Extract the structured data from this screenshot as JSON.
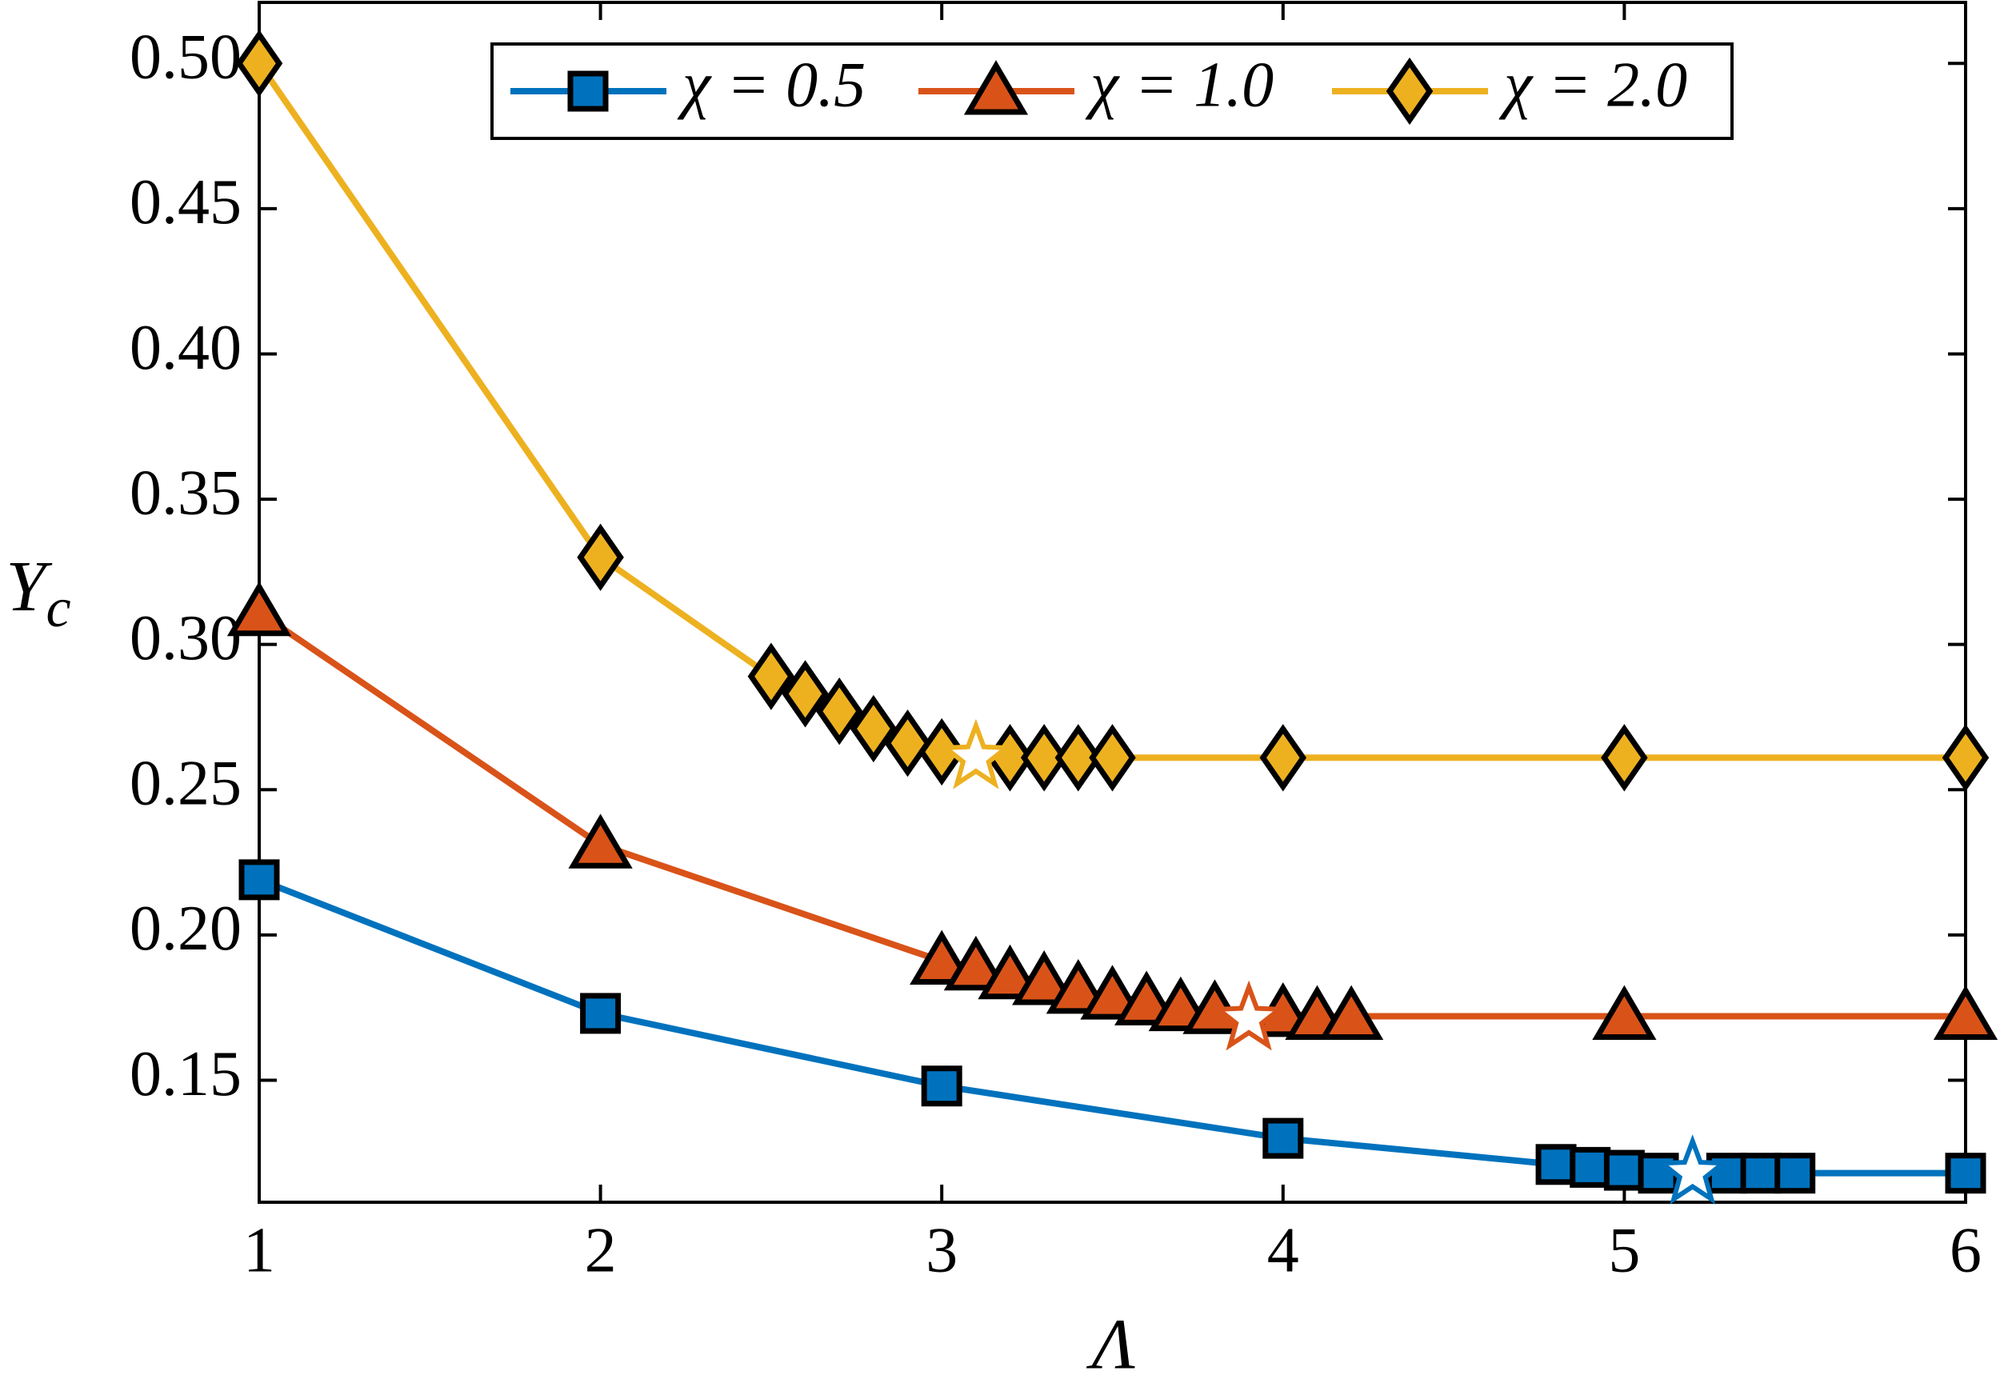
{
  "chart_data": {
    "type": "line",
    "xlabel": "Λ",
    "ylabel": {
      "main": "Y",
      "sub": "c"
    },
    "xlim": [
      1,
      6
    ],
    "ylim": [
      0.108,
      0.521
    ],
    "xticks": [
      1,
      2,
      3,
      4,
      5,
      6
    ],
    "yticks": [
      0.15,
      {
        "value": 0.2,
        "label": "0.20"
      },
      0.25,
      {
        "value": 0.3,
        "label": "0.30"
      },
      0.35,
      {
        "value": 0.4,
        "label": "0.40"
      },
      0.45,
      {
        "value": 0.5,
        "label": "0.50"
      }
    ],
    "legend": "top",
    "series": [
      {
        "name": "χ = 0.5",
        "color": "#0072bd",
        "marker": "square",
        "x": [
          1,
          2,
          3,
          4,
          4.8,
          4.9,
          5.0,
          5.1,
          5.3,
          5.4,
          5.5,
          6
        ],
        "values": [
          0.219,
          0.173,
          0.148,
          0.13,
          0.121,
          0.12,
          0.119,
          0.118,
          0.118,
          0.118,
          0.118,
          0.118
        ],
        "star": {
          "x": 5.2,
          "y": 0.118
        }
      },
      {
        "name": "χ = 1.0",
        "color": "#d95319",
        "marker": "triangle",
        "x": [
          1,
          2,
          3,
          3.1,
          3.2,
          3.3,
          3.4,
          3.5,
          3.6,
          3.7,
          3.8,
          4.0,
          4.1,
          4.2,
          5,
          6
        ],
        "values": [
          0.311,
          0.231,
          0.191,
          0.189,
          0.186,
          0.184,
          0.181,
          0.179,
          0.177,
          0.175,
          0.174,
          0.173,
          0.172,
          0.172,
          0.172,
          0.172
        ],
        "star": {
          "x": 3.9,
          "y": 0.171
        }
      },
      {
        "name": "χ = 2.0",
        "color": "#edb120",
        "marker": "diamond",
        "x": [
          1,
          2,
          2.5,
          2.6,
          2.7,
          2.8,
          2.9,
          3.0,
          3.2,
          3.3,
          3.4,
          3.5,
          4,
          5,
          6
        ],
        "values": [
          0.5,
          0.33,
          0.289,
          0.283,
          0.277,
          0.271,
          0.266,
          0.263,
          0.261,
          0.261,
          0.261,
          0.261,
          0.261,
          0.261,
          0.261
        ],
        "star": {
          "x": 3.1,
          "y": 0.261
        }
      }
    ]
  }
}
